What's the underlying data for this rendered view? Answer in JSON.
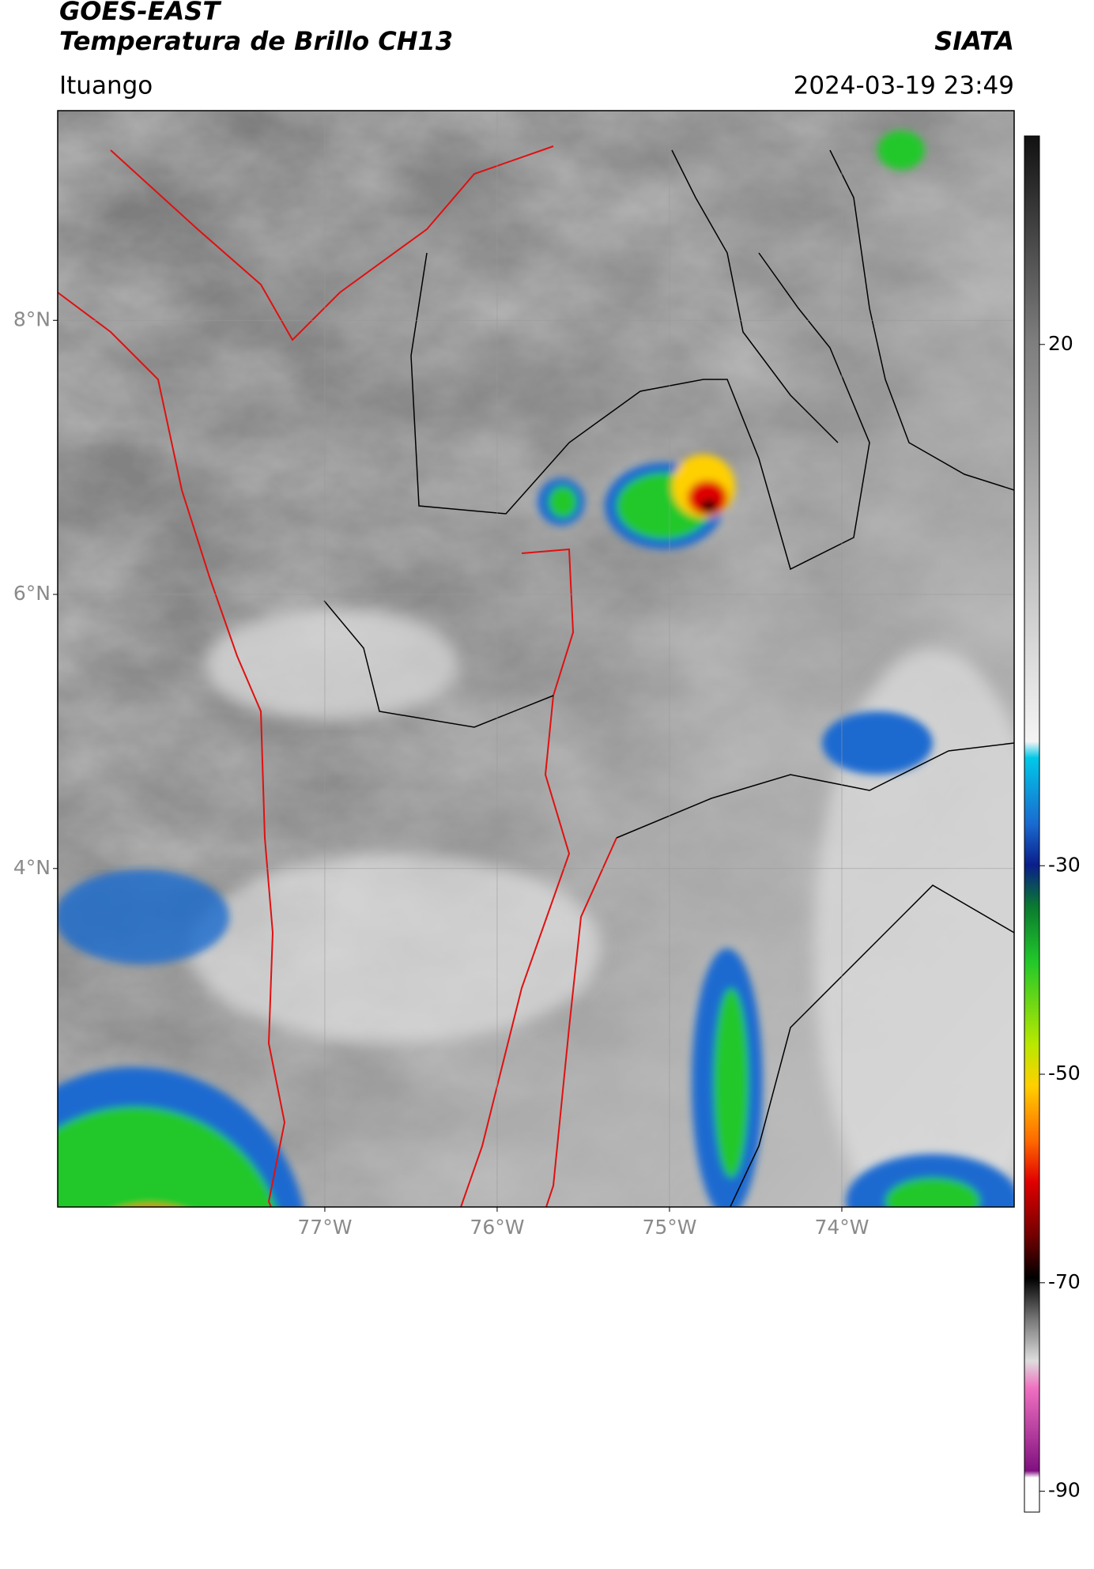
{
  "header": {
    "satellite": "GOES-EAST",
    "product": "Temperatura de Brillo CH13",
    "agency": "SIATA",
    "location": "Ituango",
    "datetime": "2024-03-19 23:49"
  },
  "map": {
    "lonlim": [
      -78.55,
      -73.0
    ],
    "latlim": [
      1.53,
      9.53
    ],
    "lat_ticks": [
      {
        "value": 8,
        "label": "8°N"
      },
      {
        "value": 6,
        "label": "6°N"
      },
      {
        "value": 4,
        "label": "4°N"
      }
    ],
    "lon_ticks": [
      {
        "value": -77,
        "label": "77°W"
      },
      {
        "value": -76,
        "label": "76°W"
      },
      {
        "value": -75,
        "label": "75°W"
      },
      {
        "value": -74,
        "label": "74°W"
      }
    ],
    "grid": true
  },
  "colorbar": {
    "lim": [
      -92,
      40
    ],
    "ticks": [
      20,
      -30,
      -50,
      -70,
      -90
    ]
  }
}
